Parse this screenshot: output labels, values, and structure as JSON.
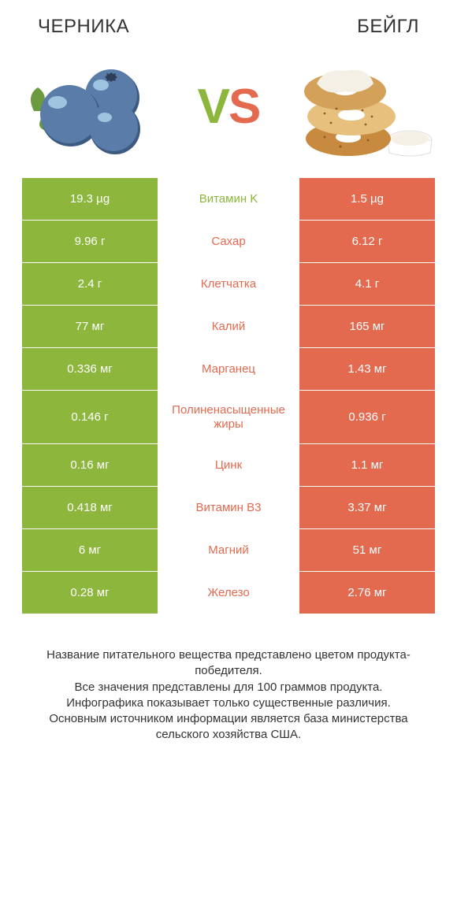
{
  "titles": {
    "left": "ЧЕРНИКА",
    "right": "БЕЙГЛ",
    "vs": "VS"
  },
  "colors": {
    "left": "#8cb63c",
    "right": "#e36a4f",
    "vs_v": "#8cb63c",
    "vs_s": "#e36a4f",
    "bg": "#ffffff",
    "text": "#333333"
  },
  "rows": [
    {
      "left": "19.3 µg",
      "name": "Витамин K",
      "right": "1.5 µg",
      "winner": "left",
      "tall": false
    },
    {
      "left": "9.96 г",
      "name": "Сахар",
      "right": "6.12 г",
      "winner": "right",
      "tall": false
    },
    {
      "left": "2.4 г",
      "name": "Клетчатка",
      "right": "4.1 г",
      "winner": "right",
      "tall": false
    },
    {
      "left": "77 мг",
      "name": "Калий",
      "right": "165 мг",
      "winner": "right",
      "tall": false
    },
    {
      "left": "0.336 мг",
      "name": "Марганец",
      "right": "1.43 мг",
      "winner": "right",
      "tall": false
    },
    {
      "left": "0.146 г",
      "name": "Полиненасыщенные жиры",
      "right": "0.936 г",
      "winner": "right",
      "tall": true
    },
    {
      "left": "0.16 мг",
      "name": "Цинк",
      "right": "1.1 мг",
      "winner": "right",
      "tall": false
    },
    {
      "left": "0.418 мг",
      "name": "Витамин B3",
      "right": "3.37 мг",
      "winner": "right",
      "tall": false
    },
    {
      "left": "6 мг",
      "name": "Магний",
      "right": "51 мг",
      "winner": "right",
      "tall": false
    },
    {
      "left": "0.28 мг",
      "name": "Железо",
      "right": "2.76 мг",
      "winner": "right",
      "tall": false
    }
  ],
  "footer": "Название питательного вещества представлено цветом продукта-победителя.\nВсе значения представлены для 100 граммов продукта.\nИнфографика показывает только существенные различия.\nОсновным источником информации является база министерства сельского хозяйства США."
}
